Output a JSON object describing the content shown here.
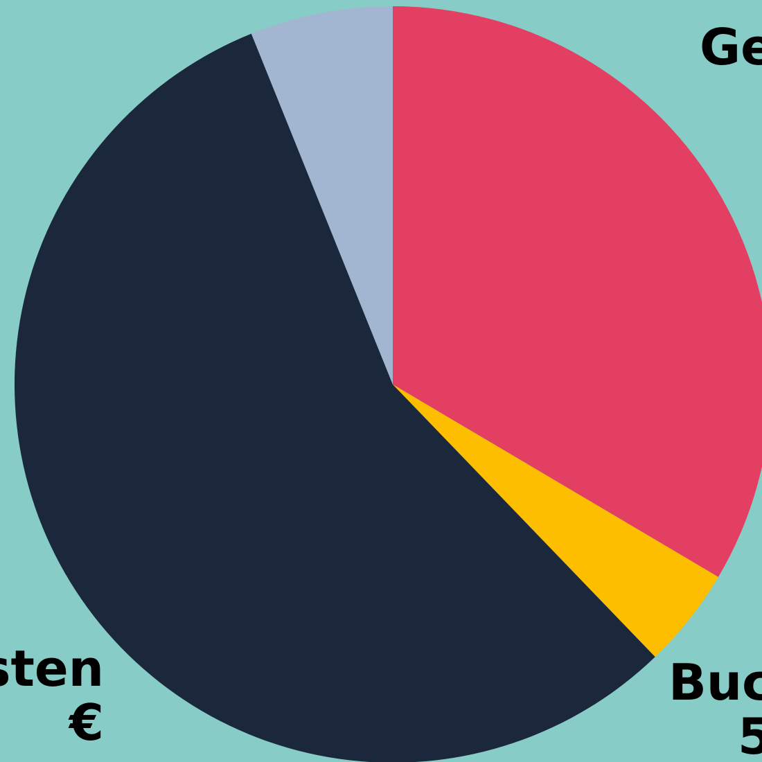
{
  "chart_data": {
    "type": "pie",
    "background": "#88ccc8",
    "start_angle_deg": 0,
    "direction": "clockwise",
    "slices": [
      {
        "label_lines": [
          "Ge"
        ],
        "percent": 33.5,
        "color": "#e33f63"
      },
      {
        "label_lines": [
          "Buc",
          "5"
        ],
        "percent": 4.3,
        "color": "#fdbe00"
      },
      {
        "label_lines": [
          "sten",
          "€"
        ],
        "percent": 56.1,
        "color": "#1b283b"
      },
      {
        "label_lines": [],
        "percent": 6.1,
        "color": "#a2b6d2"
      }
    ]
  }
}
